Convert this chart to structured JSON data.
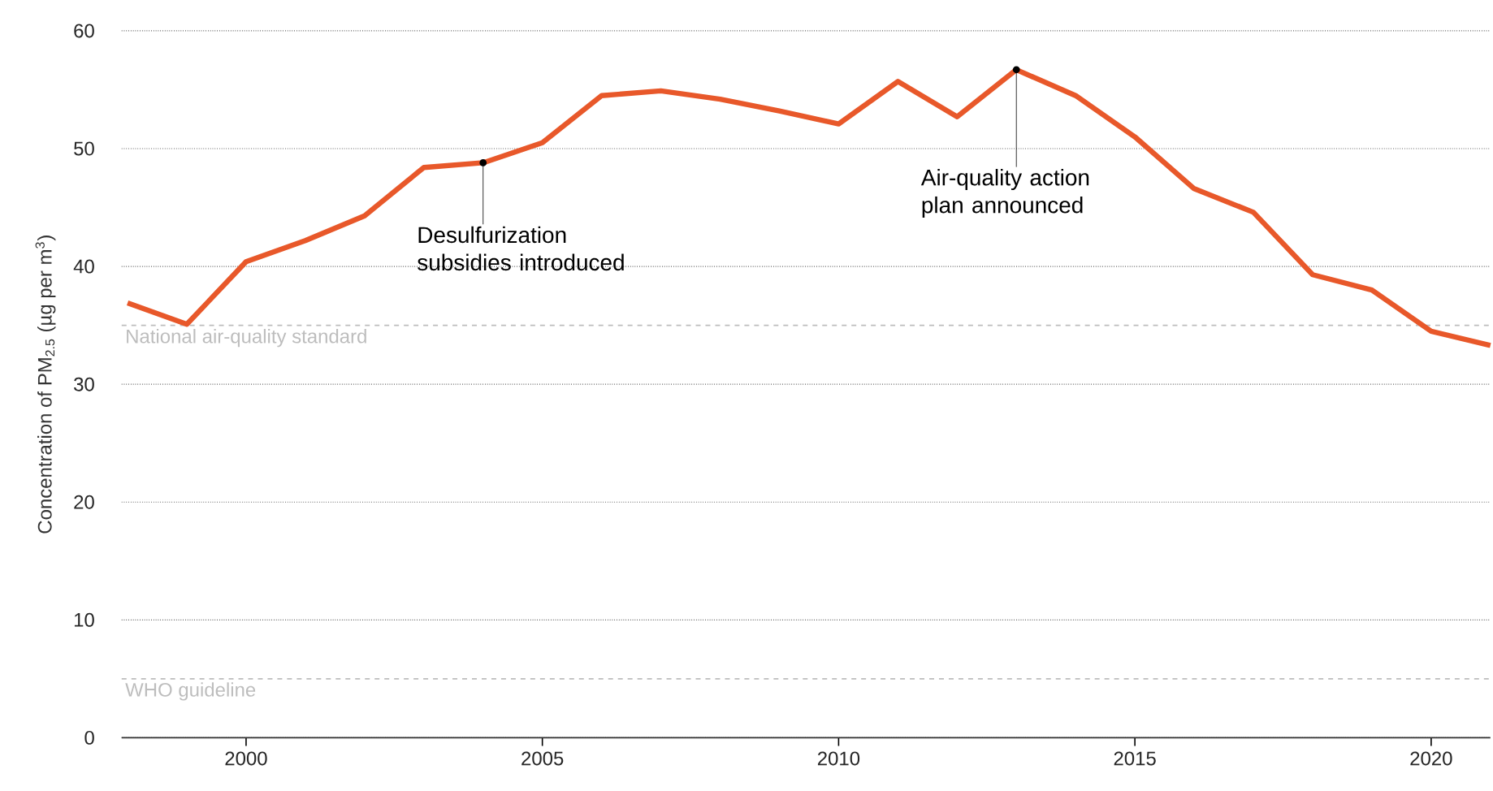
{
  "chart_data": {
    "type": "line",
    "ylabel": "Concentration of PM$_{2.5}$ (µg per m$^{3}$)",
    "x": [
      1998,
      1999,
      2000,
      2001,
      2002,
      2003,
      2004,
      2005,
      2006,
      2007,
      2008,
      2009,
      2010,
      2011,
      2012,
      2013,
      2014,
      2015,
      2016,
      2017,
      2018,
      2019,
      2020,
      2021
    ],
    "series": [
      {
        "color": "#e8582a",
        "values": [
          36.9,
          35.1,
          40.4,
          42.2,
          44.3,
          48.4,
          48.8,
          50.5,
          54.5,
          54.9,
          54.2,
          53.2,
          52.1,
          55.7,
          52.7,
          56.7,
          54.5,
          51.0,
          46.6,
          44.6,
          39.3,
          38.0,
          34.5,
          33.3
        ]
      }
    ],
    "xlim": [
      1997.9,
      2021
    ],
    "ylim": [
      0,
      60
    ],
    "xticks": [
      2000,
      2005,
      2010,
      2015,
      2020
    ],
    "yticks": [
      0,
      10,
      20,
      30,
      40,
      50,
      60
    ],
    "grid": "y",
    "marker": "none",
    "line_style": "solid",
    "ref_lines": [
      {
        "axis": "y",
        "value": 35,
        "label": "National air-quality standard",
        "color": "#bdbdbd",
        "line_style": "dashed"
      },
      {
        "axis": "y",
        "value": 5,
        "label": "WHO guideline",
        "color": "#bdbdbd",
        "line_style": "dashed"
      }
    ],
    "annotations": [
      {
        "text": "Desulfurization subsidies introduced",
        "x": 2004,
        "y": 48.8
      },
      {
        "text": "Air-quality action plan announced",
        "x": 2013,
        "y": 56.7
      }
    ]
  }
}
